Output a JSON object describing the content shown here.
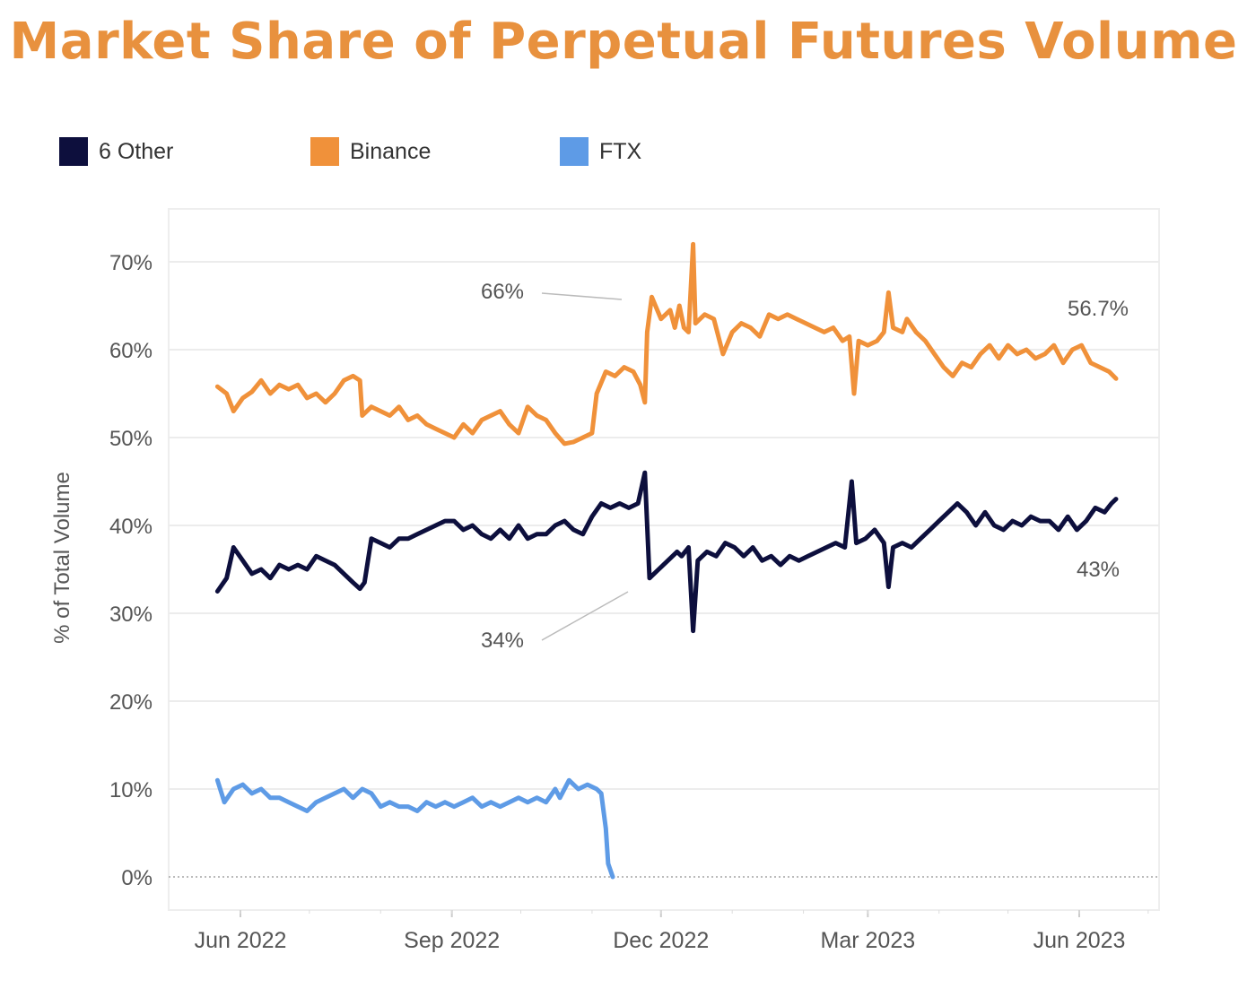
{
  "title": "Market Share of Perpetual Futures Volume",
  "colors": {
    "title": "#E8913E",
    "six_other": "#0D0F3D",
    "binance": "#F0913A",
    "ftx": "#5E9BE6",
    "grid": "#ECECEC",
    "axis_text": "#555555",
    "annotation_text": "#555555"
  },
  "legend": [
    {
      "label": "6 Other",
      "color": "#0D0F3D"
    },
    {
      "label": "Binance",
      "color": "#F0913A"
    },
    {
      "label": "FTX",
      "color": "#5E9BE6"
    }
  ],
  "chart_data": {
    "type": "line",
    "title": "Market Share of Perpetual Futures Volume",
    "xlabel": "",
    "ylabel": "% of Total Volume",
    "ylim": [
      0,
      70
    ],
    "xlim": [
      "2022-05-25",
      "2023-06-30"
    ],
    "y_ticks": [
      "0%",
      "10%",
      "20%",
      "30%",
      "40%",
      "50%",
      "60%",
      "70%"
    ],
    "x_ticks": [
      {
        "label": "Jun 2022",
        "date": "2022-06-01"
      },
      {
        "label": "Sep 2022",
        "date": "2022-09-01"
      },
      {
        "label": "Dec 2022",
        "date": "2022-12-01"
      },
      {
        "label": "Mar 2023",
        "date": "2023-03-01"
      },
      {
        "label": "Jun 2023",
        "date": "2023-06-01"
      }
    ],
    "grid": true,
    "legend_position": "top-left",
    "series": [
      {
        "name": "Binance",
        "color": "#F0913A",
        "points": [
          [
            "2022-05-22",
            55.8
          ],
          [
            "2022-05-26",
            55.0
          ],
          [
            "2022-05-29",
            53.0
          ],
          [
            "2022-06-02",
            54.5
          ],
          [
            "2022-06-06",
            55.2
          ],
          [
            "2022-06-10",
            56.5
          ],
          [
            "2022-06-14",
            55.0
          ],
          [
            "2022-06-18",
            56.0
          ],
          [
            "2022-06-22",
            55.5
          ],
          [
            "2022-06-26",
            56.0
          ],
          [
            "2022-06-30",
            54.5
          ],
          [
            "2022-07-04",
            55.0
          ],
          [
            "2022-07-08",
            54.0
          ],
          [
            "2022-07-12",
            55.0
          ],
          [
            "2022-07-16",
            56.5
          ],
          [
            "2022-07-20",
            57.0
          ],
          [
            "2022-07-23",
            56.5
          ],
          [
            "2022-07-24",
            52.5
          ],
          [
            "2022-07-28",
            53.5
          ],
          [
            "2022-08-01",
            53.0
          ],
          [
            "2022-08-05",
            52.5
          ],
          [
            "2022-08-09",
            53.5
          ],
          [
            "2022-08-13",
            52.0
          ],
          [
            "2022-08-17",
            52.5
          ],
          [
            "2022-08-21",
            51.5
          ],
          [
            "2022-08-25",
            51.0
          ],
          [
            "2022-08-29",
            50.5
          ],
          [
            "2022-09-02",
            50.0
          ],
          [
            "2022-09-06",
            51.5
          ],
          [
            "2022-09-10",
            50.5
          ],
          [
            "2022-09-14",
            52.0
          ],
          [
            "2022-09-18",
            52.5
          ],
          [
            "2022-09-22",
            53.0
          ],
          [
            "2022-09-26",
            51.5
          ],
          [
            "2022-09-30",
            50.5
          ],
          [
            "2022-10-04",
            53.5
          ],
          [
            "2022-10-08",
            52.5
          ],
          [
            "2022-10-12",
            52.0
          ],
          [
            "2022-10-16",
            50.5
          ],
          [
            "2022-10-20",
            49.3
          ],
          [
            "2022-10-24",
            49.5
          ],
          [
            "2022-10-28",
            50.0
          ],
          [
            "2022-11-01",
            50.5
          ],
          [
            "2022-11-03",
            55.0
          ],
          [
            "2022-11-07",
            57.5
          ],
          [
            "2022-11-11",
            57.0
          ],
          [
            "2022-11-15",
            58.0
          ],
          [
            "2022-11-19",
            57.5
          ],
          [
            "2022-11-22",
            56.0
          ],
          [
            "2022-11-24",
            54.0
          ],
          [
            "2022-11-25",
            62.0
          ],
          [
            "2022-11-27",
            66.0
          ],
          [
            "2022-12-01",
            63.5
          ],
          [
            "2022-12-05",
            64.5
          ],
          [
            "2022-12-07",
            62.5
          ],
          [
            "2022-12-09",
            65.0
          ],
          [
            "2022-12-11",
            62.5
          ],
          [
            "2022-12-13",
            62.0
          ],
          [
            "2022-12-15",
            72.0
          ],
          [
            "2022-12-16",
            63.0
          ],
          [
            "2022-12-20",
            64.0
          ],
          [
            "2022-12-24",
            63.5
          ],
          [
            "2022-12-28",
            59.5
          ],
          [
            "2023-01-01",
            62.0
          ],
          [
            "2023-01-05",
            63.0
          ],
          [
            "2023-01-09",
            62.5
          ],
          [
            "2023-01-13",
            61.5
          ],
          [
            "2023-01-17",
            64.0
          ],
          [
            "2023-01-21",
            63.5
          ],
          [
            "2023-01-25",
            64.0
          ],
          [
            "2023-01-29",
            63.5
          ],
          [
            "2023-02-02",
            63.0
          ],
          [
            "2023-02-06",
            62.5
          ],
          [
            "2023-02-10",
            62.0
          ],
          [
            "2023-02-14",
            62.5
          ],
          [
            "2023-02-18",
            61.0
          ],
          [
            "2023-02-21",
            61.5
          ],
          [
            "2023-02-23",
            55.0
          ],
          [
            "2023-02-25",
            61.0
          ],
          [
            "2023-03-01",
            60.5
          ],
          [
            "2023-03-05",
            61.0
          ],
          [
            "2023-03-08",
            62.0
          ],
          [
            "2023-03-10",
            66.5
          ],
          [
            "2023-03-12",
            62.5
          ],
          [
            "2023-03-16",
            62.0
          ],
          [
            "2023-03-18",
            63.5
          ],
          [
            "2023-03-22",
            62.0
          ],
          [
            "2023-03-26",
            61.0
          ],
          [
            "2023-03-30",
            59.5
          ],
          [
            "2023-04-03",
            58.0
          ],
          [
            "2023-04-07",
            57.0
          ],
          [
            "2023-04-11",
            58.5
          ],
          [
            "2023-04-15",
            58.0
          ],
          [
            "2023-04-19",
            59.5
          ],
          [
            "2023-04-23",
            60.5
          ],
          [
            "2023-04-27",
            59.0
          ],
          [
            "2023-05-01",
            60.5
          ],
          [
            "2023-05-05",
            59.5
          ],
          [
            "2023-05-09",
            60.0
          ],
          [
            "2023-05-13",
            59.0
          ],
          [
            "2023-05-17",
            59.5
          ],
          [
            "2023-05-21",
            60.5
          ],
          [
            "2023-05-25",
            58.5
          ],
          [
            "2023-05-29",
            60.0
          ],
          [
            "2023-06-02",
            60.5
          ],
          [
            "2023-06-06",
            58.5
          ],
          [
            "2023-06-10",
            58.0
          ],
          [
            "2023-06-14",
            57.5
          ],
          [
            "2023-06-17",
            56.7
          ]
        ]
      },
      {
        "name": "6 Other",
        "color": "#0D0F3D",
        "points": [
          [
            "2022-05-22",
            32.5
          ],
          [
            "2022-05-26",
            34.0
          ],
          [
            "2022-05-29",
            37.5
          ],
          [
            "2022-06-02",
            36.0
          ],
          [
            "2022-06-06",
            34.5
          ],
          [
            "2022-06-10",
            35.0
          ],
          [
            "2022-06-14",
            34.0
          ],
          [
            "2022-06-18",
            35.5
          ],
          [
            "2022-06-22",
            35.0
          ],
          [
            "2022-06-26",
            35.5
          ],
          [
            "2022-06-30",
            35.0
          ],
          [
            "2022-07-04",
            36.5
          ],
          [
            "2022-07-08",
            36.0
          ],
          [
            "2022-07-12",
            35.5
          ],
          [
            "2022-07-16",
            34.5
          ],
          [
            "2022-07-20",
            33.5
          ],
          [
            "2022-07-23",
            32.8
          ],
          [
            "2022-07-25",
            33.5
          ],
          [
            "2022-07-28",
            38.5
          ],
          [
            "2022-08-01",
            38.0
          ],
          [
            "2022-08-05",
            37.5
          ],
          [
            "2022-08-09",
            38.5
          ],
          [
            "2022-08-13",
            38.5
          ],
          [
            "2022-08-17",
            39.0
          ],
          [
            "2022-08-21",
            39.5
          ],
          [
            "2022-08-25",
            40.0
          ],
          [
            "2022-08-29",
            40.5
          ],
          [
            "2022-09-02",
            40.5
          ],
          [
            "2022-09-06",
            39.5
          ],
          [
            "2022-09-10",
            40.0
          ],
          [
            "2022-09-14",
            39.0
          ],
          [
            "2022-09-18",
            38.5
          ],
          [
            "2022-09-22",
            39.5
          ],
          [
            "2022-09-26",
            38.5
          ],
          [
            "2022-09-30",
            40.0
          ],
          [
            "2022-10-04",
            38.5
          ],
          [
            "2022-10-08",
            39.0
          ],
          [
            "2022-10-12",
            39.0
          ],
          [
            "2022-10-16",
            40.0
          ],
          [
            "2022-10-20",
            40.5
          ],
          [
            "2022-10-24",
            39.5
          ],
          [
            "2022-10-28",
            39.0
          ],
          [
            "2022-11-01",
            41.0
          ],
          [
            "2022-11-05",
            42.5
          ],
          [
            "2022-11-09",
            42.0
          ],
          [
            "2022-11-13",
            42.5
          ],
          [
            "2022-11-17",
            42.0
          ],
          [
            "2022-11-21",
            42.5
          ],
          [
            "2022-11-24",
            46.0
          ],
          [
            "2022-11-26",
            34.0
          ],
          [
            "2022-11-30",
            35.0
          ],
          [
            "2022-12-04",
            36.0
          ],
          [
            "2022-12-08",
            37.0
          ],
          [
            "2022-12-10",
            36.5
          ],
          [
            "2022-12-13",
            37.5
          ],
          [
            "2022-12-15",
            28.0
          ],
          [
            "2022-12-17",
            36.0
          ],
          [
            "2022-12-21",
            37.0
          ],
          [
            "2022-12-25",
            36.5
          ],
          [
            "2022-12-29",
            38.0
          ],
          [
            "2023-01-02",
            37.5
          ],
          [
            "2023-01-06",
            36.5
          ],
          [
            "2023-01-10",
            37.5
          ],
          [
            "2023-01-14",
            36.0
          ],
          [
            "2023-01-18",
            36.5
          ],
          [
            "2023-01-22",
            35.5
          ],
          [
            "2023-01-26",
            36.5
          ],
          [
            "2023-01-30",
            36.0
          ],
          [
            "2023-02-03",
            36.5
          ],
          [
            "2023-02-07",
            37.0
          ],
          [
            "2023-02-11",
            37.5
          ],
          [
            "2023-02-15",
            38.0
          ],
          [
            "2023-02-19",
            37.5
          ],
          [
            "2023-02-22",
            45.0
          ],
          [
            "2023-02-24",
            38.0
          ],
          [
            "2023-02-28",
            38.5
          ],
          [
            "2023-03-04",
            39.5
          ],
          [
            "2023-03-08",
            38.0
          ],
          [
            "2023-03-10",
            33.0
          ],
          [
            "2023-03-12",
            37.5
          ],
          [
            "2023-03-16",
            38.0
          ],
          [
            "2023-03-20",
            37.5
          ],
          [
            "2023-03-24",
            38.5
          ],
          [
            "2023-03-28",
            39.5
          ],
          [
            "2023-04-01",
            40.5
          ],
          [
            "2023-04-05",
            41.5
          ],
          [
            "2023-04-09",
            42.5
          ],
          [
            "2023-04-13",
            41.5
          ],
          [
            "2023-04-17",
            40.0
          ],
          [
            "2023-04-21",
            41.5
          ],
          [
            "2023-04-25",
            40.0
          ],
          [
            "2023-04-29",
            39.5
          ],
          [
            "2023-05-03",
            40.5
          ],
          [
            "2023-05-07",
            40.0
          ],
          [
            "2023-05-11",
            41.0
          ],
          [
            "2023-05-15",
            40.5
          ],
          [
            "2023-05-19",
            40.5
          ],
          [
            "2023-05-23",
            39.5
          ],
          [
            "2023-05-27",
            41.0
          ],
          [
            "2023-05-31",
            39.5
          ],
          [
            "2023-06-04",
            40.5
          ],
          [
            "2023-06-08",
            42.0
          ],
          [
            "2023-06-12",
            41.5
          ],
          [
            "2023-06-15",
            42.5
          ],
          [
            "2023-06-17",
            43.0
          ]
        ]
      },
      {
        "name": "FTX",
        "color": "#5E9BE6",
        "points": [
          [
            "2022-05-22",
            11.0
          ],
          [
            "2022-05-25",
            8.5
          ],
          [
            "2022-05-29",
            10.0
          ],
          [
            "2022-06-02",
            10.5
          ],
          [
            "2022-06-06",
            9.5
          ],
          [
            "2022-06-10",
            10.0
          ],
          [
            "2022-06-14",
            9.0
          ],
          [
            "2022-06-18",
            9.0
          ],
          [
            "2022-06-22",
            8.5
          ],
          [
            "2022-06-26",
            8.0
          ],
          [
            "2022-06-30",
            7.5
          ],
          [
            "2022-07-04",
            8.5
          ],
          [
            "2022-07-08",
            9.0
          ],
          [
            "2022-07-12",
            9.5
          ],
          [
            "2022-07-16",
            10.0
          ],
          [
            "2022-07-20",
            9.0
          ],
          [
            "2022-07-24",
            10.0
          ],
          [
            "2022-07-28",
            9.5
          ],
          [
            "2022-08-01",
            8.0
          ],
          [
            "2022-08-05",
            8.5
          ],
          [
            "2022-08-09",
            8.0
          ],
          [
            "2022-08-13",
            8.0
          ],
          [
            "2022-08-17",
            7.5
          ],
          [
            "2022-08-21",
            8.5
          ],
          [
            "2022-08-25",
            8.0
          ],
          [
            "2022-08-29",
            8.5
          ],
          [
            "2022-09-02",
            8.0
          ],
          [
            "2022-09-06",
            8.5
          ],
          [
            "2022-09-10",
            9.0
          ],
          [
            "2022-09-14",
            8.0
          ],
          [
            "2022-09-18",
            8.5
          ],
          [
            "2022-09-22",
            8.0
          ],
          [
            "2022-09-26",
            8.5
          ],
          [
            "2022-09-30",
            9.0
          ],
          [
            "2022-10-04",
            8.5
          ],
          [
            "2022-10-08",
            9.0
          ],
          [
            "2022-10-12",
            8.5
          ],
          [
            "2022-10-16",
            10.0
          ],
          [
            "2022-10-18",
            9.0
          ],
          [
            "2022-10-22",
            11.0
          ],
          [
            "2022-10-26",
            10.0
          ],
          [
            "2022-10-30",
            10.5
          ],
          [
            "2022-11-03",
            10.0
          ],
          [
            "2022-11-05",
            9.5
          ],
          [
            "2022-11-07",
            5.5
          ],
          [
            "2022-11-08",
            1.5
          ],
          [
            "2022-11-10",
            0.0
          ]
        ]
      }
    ],
    "annotations": [
      {
        "text": "66%",
        "x": "2022-11-27",
        "y": 66
      },
      {
        "text": "34%",
        "x": "2022-11-26",
        "y": 34
      },
      {
        "text": "56.7%",
        "x": "2023-06-17",
        "y": 56.7
      },
      {
        "text": "43%",
        "x": "2023-06-17",
        "y": 43
      }
    ]
  }
}
